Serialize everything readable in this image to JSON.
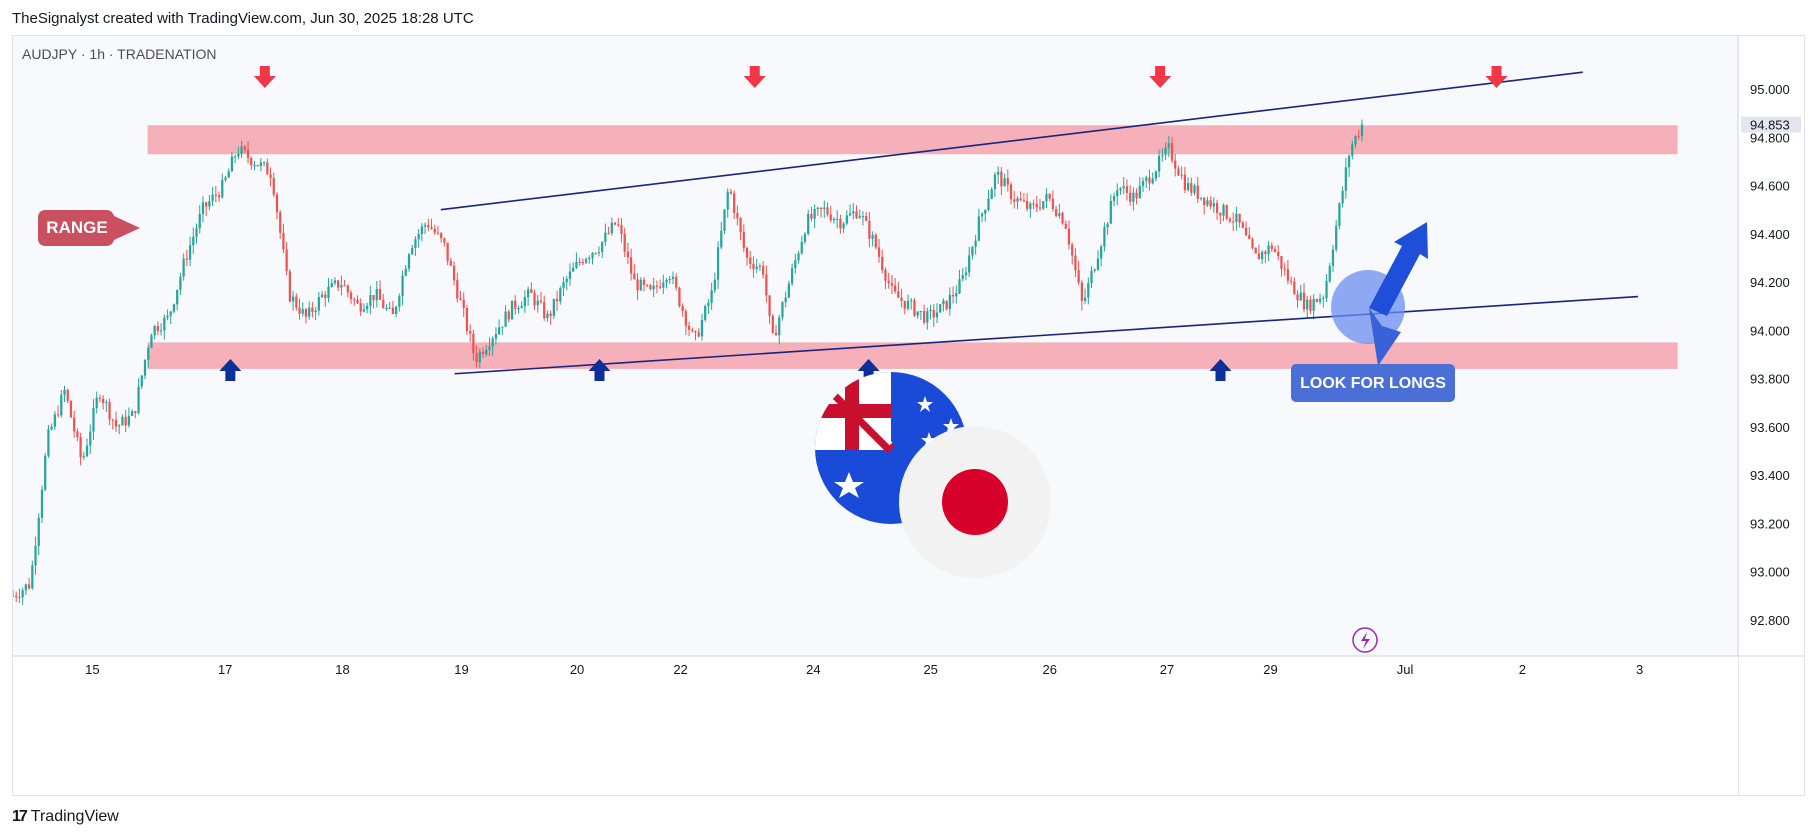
{
  "header": {
    "caption": "TheSignalyst created with TradingView.com, Jun 30, 2025 18:28 UTC"
  },
  "symbol": {
    "info": "AUDJPY · 1h · TRADENATION"
  },
  "footer": {
    "brand": "TradingView"
  },
  "colors": {
    "up": "#26a69a",
    "down": "#ef5350",
    "zone": "#f5a3ae",
    "trendline": "#1a237e",
    "sell_arrow": "#f23645",
    "buy_arrow": "#0d2f9a",
    "range_label": "#c8505f",
    "longs_label": "#4a6fd6"
  },
  "chart_data": {
    "type": "candlestick",
    "symbol": "AUDJPY",
    "timeframe": "1h",
    "ylim": [
      92.65,
      95.22
    ],
    "y_ticks": [
      92.8,
      93.0,
      93.2,
      93.4,
      93.6,
      93.8,
      94.0,
      94.2,
      94.4,
      94.6,
      94.8,
      95.0
    ],
    "y_tick_labels": [
      "92.800",
      "93.000",
      "93.200",
      "93.400",
      "93.600",
      "93.800",
      "94.000",
      "94.200",
      "94.400",
      "94.600",
      "94.800",
      "95.000"
    ],
    "x_labels": [
      "15",
      "17",
      "18",
      "19",
      "20",
      "22",
      "24",
      "25",
      "26",
      "27",
      "29",
      "Jul",
      "2",
      "3"
    ],
    "x_range": [
      0,
      100
    ],
    "x_tick_positions": [
      4.6,
      12.3,
      19.1,
      26.0,
      32.7,
      38.7,
      46.4,
      53.2,
      60.1,
      66.9,
      72.9,
      80.7,
      87.5,
      94.3
    ],
    "last_price": 94.853,
    "last_price_label": "94.853",
    "close_path": [
      [
        0.0,
        92.9
      ],
      [
        1.0,
        92.95
      ],
      [
        2.0,
        93.55
      ],
      [
        3.0,
        93.75
      ],
      [
        4.0,
        93.45
      ],
      [
        5.0,
        93.75
      ],
      [
        6.0,
        93.6
      ],
      [
        7.0,
        93.65
      ],
      [
        8.0,
        94.0
      ],
      [
        9.0,
        94.05
      ],
      [
        10.0,
        94.3
      ],
      [
        11.0,
        94.5
      ],
      [
        12.2,
        94.6
      ],
      [
        13.0,
        94.75
      ],
      [
        14.0,
        94.7
      ],
      [
        15.0,
        94.65
      ],
      [
        16.0,
        94.15
      ],
      [
        17.0,
        94.05
      ],
      [
        18.0,
        94.15
      ],
      [
        19.0,
        94.2
      ],
      [
        20.0,
        94.1
      ],
      [
        21.0,
        94.15
      ],
      [
        22.0,
        94.05
      ],
      [
        23.0,
        94.35
      ],
      [
        24.0,
        94.45
      ],
      [
        25.0,
        94.35
      ],
      [
        26.0,
        94.1
      ],
      [
        26.8,
        93.88
      ],
      [
        28.0,
        94.0
      ],
      [
        29.0,
        94.1
      ],
      [
        30.0,
        94.15
      ],
      [
        31.0,
        94.05
      ],
      [
        32.0,
        94.2
      ],
      [
        33.0,
        94.3
      ],
      [
        34.0,
        94.35
      ],
      [
        35.0,
        94.45
      ],
      [
        36.0,
        94.2
      ],
      [
        37.0,
        94.15
      ],
      [
        38.0,
        94.25
      ],
      [
        39.5,
        93.95
      ],
      [
        40.5,
        94.15
      ],
      [
        41.5,
        94.6
      ],
      [
        42.5,
        94.3
      ],
      [
        43.5,
        94.25
      ],
      [
        44.0,
        93.95
      ],
      [
        45.0,
        94.2
      ],
      [
        46.0,
        94.45
      ],
      [
        47.0,
        94.5
      ],
      [
        48.0,
        94.45
      ],
      [
        49.0,
        94.5
      ],
      [
        50.0,
        94.35
      ],
      [
        51.0,
        94.15
      ],
      [
        52.0,
        94.1
      ],
      [
        53.0,
        94.05
      ],
      [
        54.0,
        94.1
      ],
      [
        55.0,
        94.2
      ],
      [
        56.0,
        94.45
      ],
      [
        57.0,
        94.65
      ],
      [
        58.0,
        94.55
      ],
      [
        59.0,
        94.5
      ],
      [
        60.0,
        94.55
      ],
      [
        61.0,
        94.45
      ],
      [
        62.0,
        94.1
      ],
      [
        63.0,
        94.35
      ],
      [
        64.0,
        94.6
      ],
      [
        65.0,
        94.55
      ],
      [
        66.0,
        94.65
      ],
      [
        67.0,
        94.75
      ],
      [
        68.0,
        94.6
      ],
      [
        69.0,
        94.55
      ],
      [
        70.0,
        94.5
      ],
      [
        71.0,
        94.45
      ],
      [
        72.0,
        94.3
      ],
      [
        73.0,
        94.35
      ],
      [
        74.0,
        94.2
      ],
      [
        75.0,
        94.1
      ],
      [
        76.0,
        94.15
      ],
      [
        76.5,
        94.35
      ],
      [
        77.0,
        94.55
      ],
      [
        77.5,
        94.75
      ],
      [
        78.2,
        94.853
      ]
    ],
    "resistance_zone": [
      94.73,
      94.85
    ],
    "support_zone": [
      93.84,
      93.95
    ],
    "zone_x_range": [
      7.8,
      96.5
    ],
    "trendlines": [
      {
        "x": [
          24.8,
          91.0
        ],
        "y": [
          94.5,
          95.07
        ]
      },
      {
        "x": [
          25.6,
          94.2
        ],
        "y": [
          93.82,
          94.14
        ]
      }
    ],
    "sell_arrows_x": [
      14.6,
      43.0,
      66.5,
      86.0
    ],
    "buy_arrows_x": [
      12.6,
      34.0,
      49.6,
      70.0
    ],
    "annotations": [
      {
        "text": "RANGE"
      },
      {
        "text": "LOOK FOR LONGS"
      }
    ]
  }
}
